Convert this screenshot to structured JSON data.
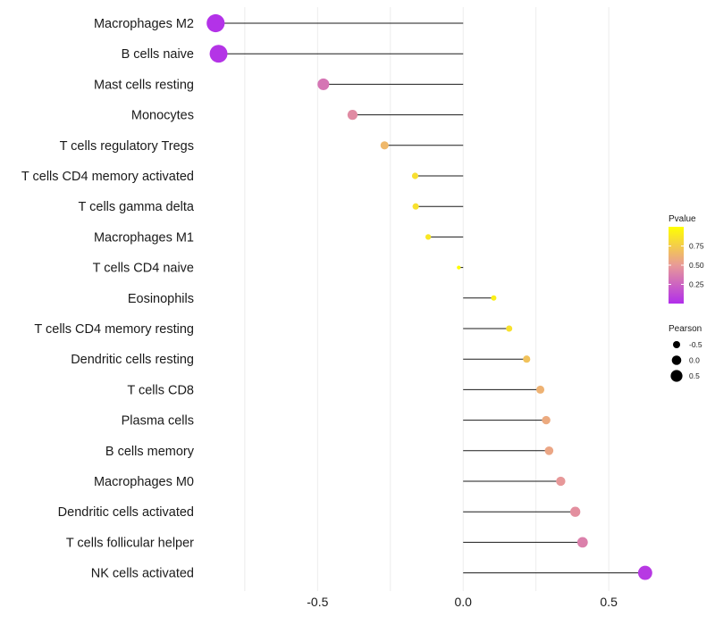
{
  "chart_data": {
    "type": "lollipop",
    "title": "",
    "xlabel": "",
    "ylabel": "",
    "xlim": [
      -0.9,
      0.65
    ],
    "xticks": [
      -0.5,
      0.0,
      0.5
    ],
    "xtick_labels": [
      "-0.5",
      "0.0",
      "0.5"
    ],
    "grid": true,
    "categories": [
      "Macrophages M2",
      "B cells naive",
      "Mast cells resting",
      "Monocytes",
      "T cells regulatory  Tregs ",
      "T cells CD4 memory activated",
      "T cells gamma delta",
      "Macrophages M1",
      "T cells CD4 naive",
      "Eosinophils",
      "T cells CD4 memory resting",
      "Dendritic cells resting",
      "T cells CD8",
      "Plasma cells",
      "B cells memory",
      "Macrophages M0",
      "Dendritic cells activated",
      "T cells follicular helper",
      "NK cells activated"
    ],
    "pearson": [
      -0.85,
      -0.84,
      -0.48,
      -0.38,
      -0.27,
      -0.165,
      -0.163,
      -0.12,
      -0.015,
      0.105,
      0.158,
      0.218,
      0.265,
      0.285,
      0.295,
      0.335,
      0.385,
      0.41,
      0.625
    ],
    "pvalue": [
      0.02,
      0.03,
      0.33,
      0.43,
      0.65,
      0.84,
      0.85,
      0.88,
      0.99,
      0.92,
      0.85,
      0.7,
      0.62,
      0.58,
      0.56,
      0.49,
      0.45,
      0.38,
      0.05
    ],
    "legend_color": {
      "title": "Pvalue",
      "ticks": [
        0.75,
        0.5,
        0.25
      ],
      "tick_labels": [
        "0.75",
        "0.50",
        "0.25"
      ],
      "range": [
        0.0,
        1.0
      ],
      "low_color": "#b12eeb",
      "mid_color": "#e89a97",
      "high_color": "#ffff00"
    },
    "legend_size": {
      "title": "Pearson",
      "values": [
        -0.5,
        0.0,
        0.5
      ],
      "labels": [
        "-0.5",
        "0.0",
        "0.5"
      ]
    }
  }
}
